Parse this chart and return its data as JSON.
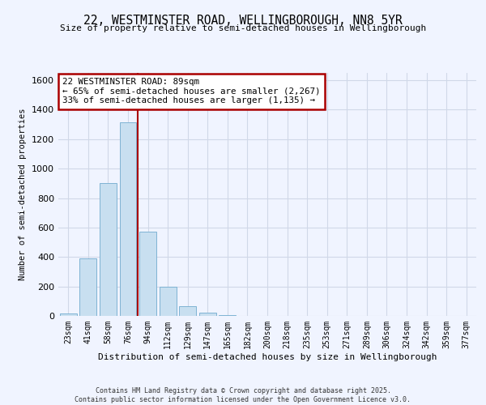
{
  "title": "22, WESTMINSTER ROAD, WELLINGBOROUGH, NN8 5YR",
  "subtitle": "Size of property relative to semi-detached houses in Wellingborough",
  "xlabel": "Distribution of semi-detached houses by size in Wellingborough",
  "ylabel": "Number of semi-detached properties",
  "categories": [
    "23sqm",
    "41sqm",
    "58sqm",
    "76sqm",
    "94sqm",
    "112sqm",
    "129sqm",
    "147sqm",
    "165sqm",
    "182sqm",
    "200sqm",
    "218sqm",
    "235sqm",
    "253sqm",
    "271sqm",
    "289sqm",
    "306sqm",
    "324sqm",
    "342sqm",
    "359sqm",
    "377sqm"
  ],
  "values": [
    15,
    390,
    900,
    1315,
    570,
    200,
    65,
    20,
    5,
    2,
    1,
    1,
    0,
    0,
    0,
    0,
    0,
    0,
    0,
    0,
    0
  ],
  "annotation_title": "22 WESTMINSTER ROAD: 89sqm",
  "annotation_line1": "← 65% of semi-detached houses are smaller (2,267)",
  "annotation_line2": "33% of semi-detached houses are larger (1,135) →",
  "bar_color": "#c8dff0",
  "bar_edge_color": "#7fb3d3",
  "property_line_color": "#aa0000",
  "annotation_box_edge_color": "#aa0000",
  "property_line_x": 4,
  "ylim": [
    0,
    1650
  ],
  "yticks": [
    0,
    200,
    400,
    600,
    800,
    1000,
    1200,
    1400,
    1600
  ],
  "grid_color": "#d0d8e8",
  "footer1": "Contains HM Land Registry data © Crown copyright and database right 2025.",
  "footer2": "Contains public sector information licensed under the Open Government Licence v3.0.",
  "bg_color": "#f0f4ff"
}
